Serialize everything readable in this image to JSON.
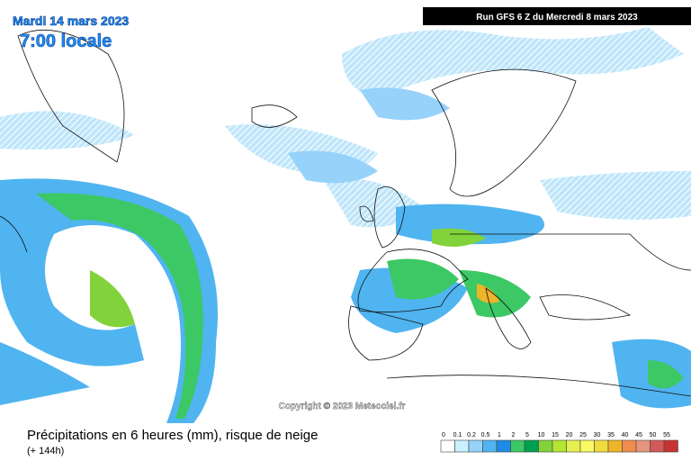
{
  "header": {
    "date": "Mardi 14 mars 2023",
    "time": "7:00 locale",
    "run": "Run GFS 6 Z du Mercredi 8 mars 2023"
  },
  "copyright": "Copyright © 2023 Meteociel.fr",
  "footer": {
    "title": "Précipitations en 6 heures (mm), risque de neige",
    "lead_time": "(+ 144h)"
  },
  "legend": {
    "items": [
      {
        "label": "0",
        "color": "#ffffff"
      },
      {
        "label": "0.1",
        "color": "#c8f0ff"
      },
      {
        "label": "0.2",
        "color": "#96d2fa"
      },
      {
        "label": "0.5",
        "color": "#50b4f0"
      },
      {
        "label": "1",
        "color": "#1e8ce6"
      },
      {
        "label": "2",
        "color": "#3cc864"
      },
      {
        "label": "5",
        "color": "#00a050"
      },
      {
        "label": "10",
        "color": "#82d23c"
      },
      {
        "label": "15",
        "color": "#b4e632"
      },
      {
        "label": "20",
        "color": "#e6f050"
      },
      {
        "label": "25",
        "color": "#fafa64"
      },
      {
        "label": "30",
        "color": "#f0dc3c"
      },
      {
        "label": "35",
        "color": "#f0b428"
      },
      {
        "label": "40",
        "color": "#f08c50"
      },
      {
        "label": "45",
        "color": "#e6967d"
      },
      {
        "label": "50",
        "color": "#d25a5a"
      },
      {
        "label": "55",
        "color": "#c83232"
      }
    ]
  }
}
